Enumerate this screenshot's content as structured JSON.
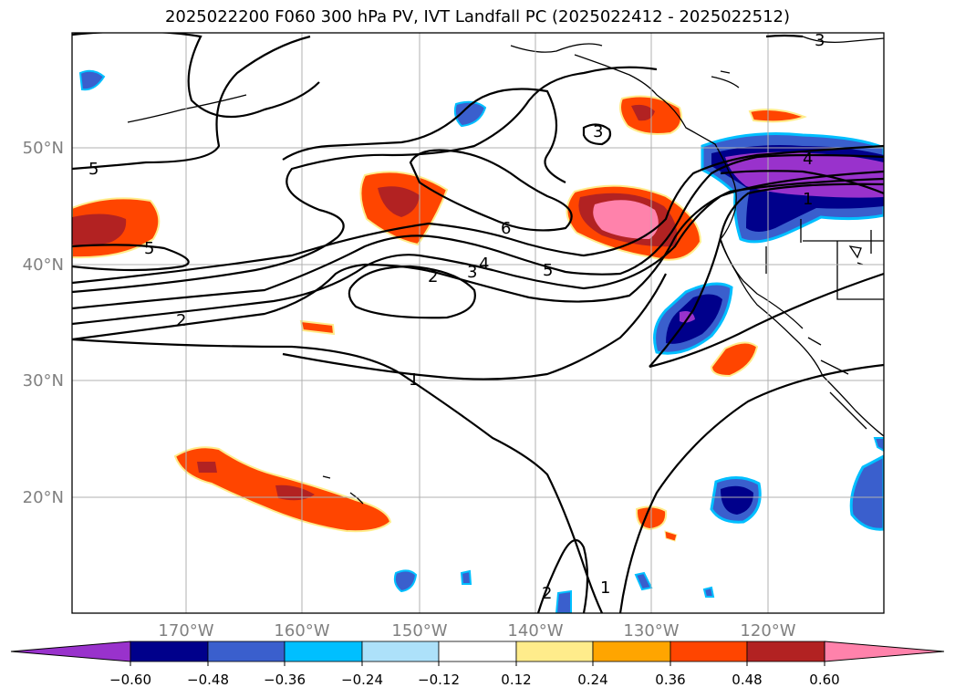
{
  "title": "2025022200 F060 300 hPa PV, IVT Landfall PC (2025022412 - 2025022512)",
  "map": {
    "lat_labels": [
      "50°N",
      "40°N",
      "30°N",
      "20°N"
    ],
    "lon_labels": [
      "170°W",
      "160°W",
      "150°W",
      "140°W",
      "130°W",
      "120°W"
    ],
    "contour_labels": [
      "3",
      "5",
      "5",
      "6",
      "4",
      "3",
      "2",
      "5",
      "2",
      "1",
      "3",
      "4",
      "1",
      "2",
      "1"
    ]
  },
  "colorbar": {
    "colors": [
      "#9932CC",
      "#00008B",
      "#3A5FCD",
      "#00BFFF",
      "#ADE1FA",
      "#FFFFFF",
      "#FFEC8B",
      "#FFA500",
      "#FF4500",
      "#B22222",
      "#FF82AB"
    ],
    "ticks": [
      "−0.60",
      "−0.48",
      "−0.36",
      "−0.24",
      "−0.12",
      "0.12",
      "0.24",
      "0.36",
      "0.48",
      "0.60"
    ]
  }
}
